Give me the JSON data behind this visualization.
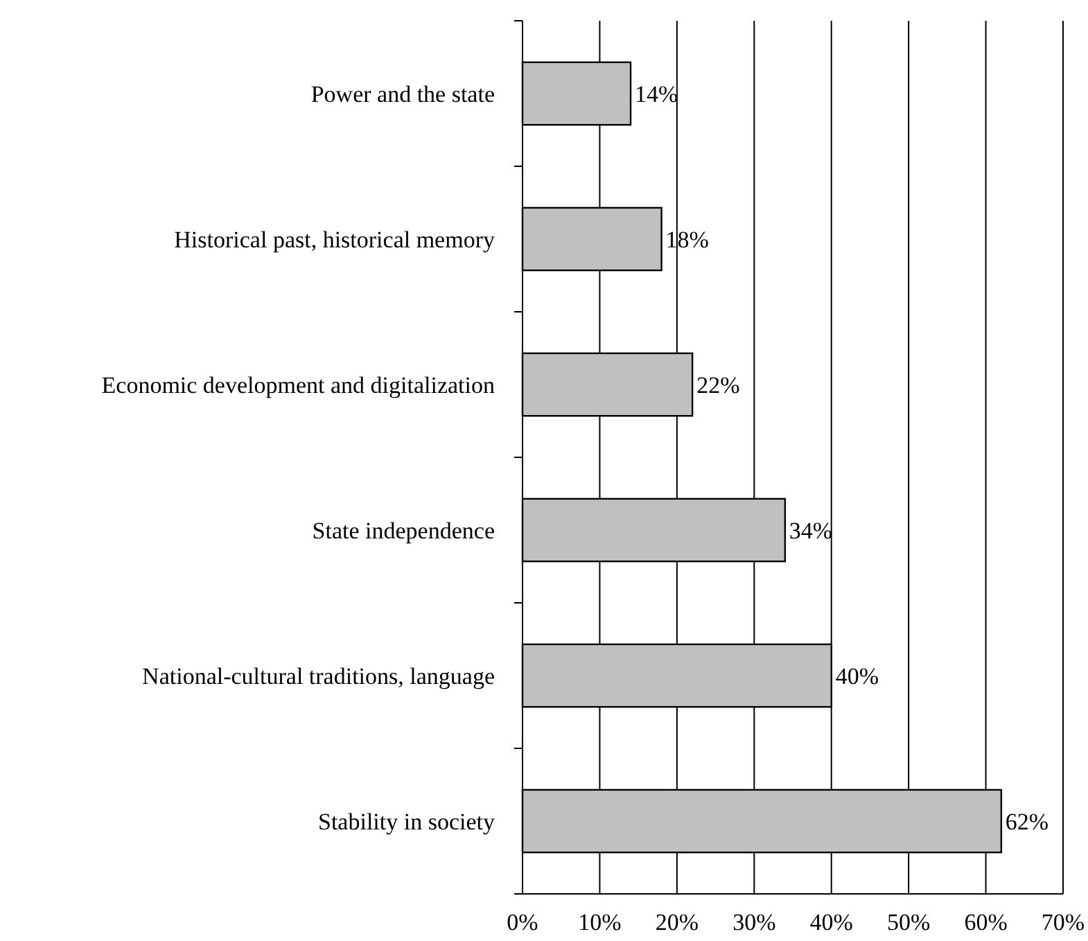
{
  "chart_data": {
    "type": "bar",
    "orientation": "horizontal",
    "categories": [
      "Power and the state",
      "Historical past, historical memory",
      "Economic development and digitalization",
      "State independence",
      "National-cultural traditions, language",
      "Stability in society"
    ],
    "values": [
      14,
      18,
      22,
      34,
      40,
      62
    ],
    "value_labels": [
      "14%",
      "18%",
      "22%",
      "34%",
      "40%",
      "62%"
    ],
    "color": "#c0c0c0",
    "xlim": [
      0,
      70
    ],
    "xticks": [
      {
        "value": 0,
        "label": "0%"
      },
      {
        "value": 10,
        "label": "10%"
      },
      {
        "value": 20,
        "label": "20%"
      },
      {
        "value": 30,
        "label": "30%"
      },
      {
        "value": 40,
        "label": "40%"
      },
      {
        "value": 50,
        "label": "50%"
      },
      {
        "value": 60,
        "label": "60%"
      },
      {
        "value": 70,
        "label": "70%"
      }
    ],
    "grid": "x"
  }
}
